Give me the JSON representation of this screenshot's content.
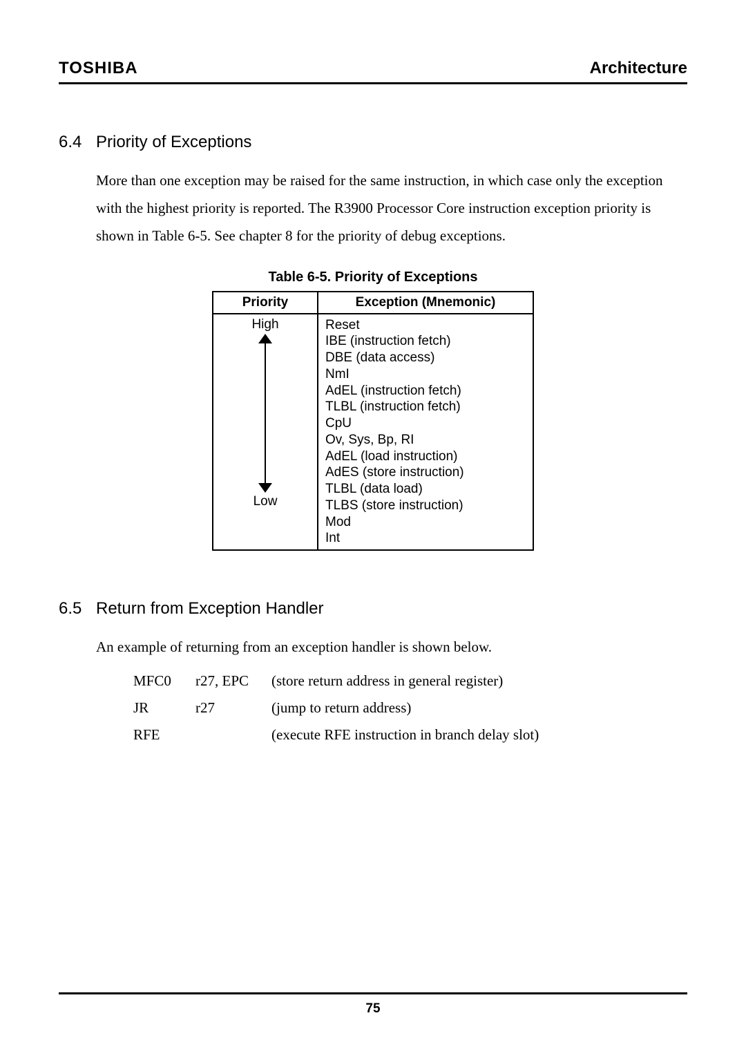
{
  "header": {
    "brand": "TOSHIBA",
    "chapter": "Architecture"
  },
  "section64": {
    "number": "6.4",
    "title": "Priority of Exceptions",
    "para": "More than one exception may be raised for the same instruction, in which case only the exception with the highest priority is reported.   The R3900 Processor Core instruction exception priority is shown in Table 6-5. See chapter 8 for the priority of debug exceptions."
  },
  "table65": {
    "caption": "Table 6-5.   Priority of Exceptions",
    "columns": [
      "Priority",
      "Exception (Mnemonic)"
    ],
    "priority_high": "High",
    "priority_low": "Low",
    "mnemonics": [
      "Reset",
      "IBE (instruction fetch)",
      "DBE (data access)",
      "NmI",
      "AdEL (instruction fetch)",
      "TLBL (instruction fetch)",
      "CpU",
      "Ov, Sys, Bp, RI",
      "AdEL (load instruction)",
      "AdES (store instruction)",
      "TLBL (data load)",
      "TLBS (store instruction)",
      "Mod",
      "Int"
    ]
  },
  "section65": {
    "number": "6.5",
    "title": "Return from Exception Handler",
    "para": "An example of returning from an exception handler is shown below.",
    "asm": [
      {
        "op": "MFC0",
        "args": "r27, EPC",
        "desc": "(store return address in general register)"
      },
      {
        "op": "JR",
        "args": "r27",
        "desc": "(jump to return address)"
      },
      {
        "op": "RFE",
        "args": "",
        "desc": "(execute RFE instruction in branch delay slot)"
      }
    ]
  },
  "footer": {
    "page": "75"
  }
}
